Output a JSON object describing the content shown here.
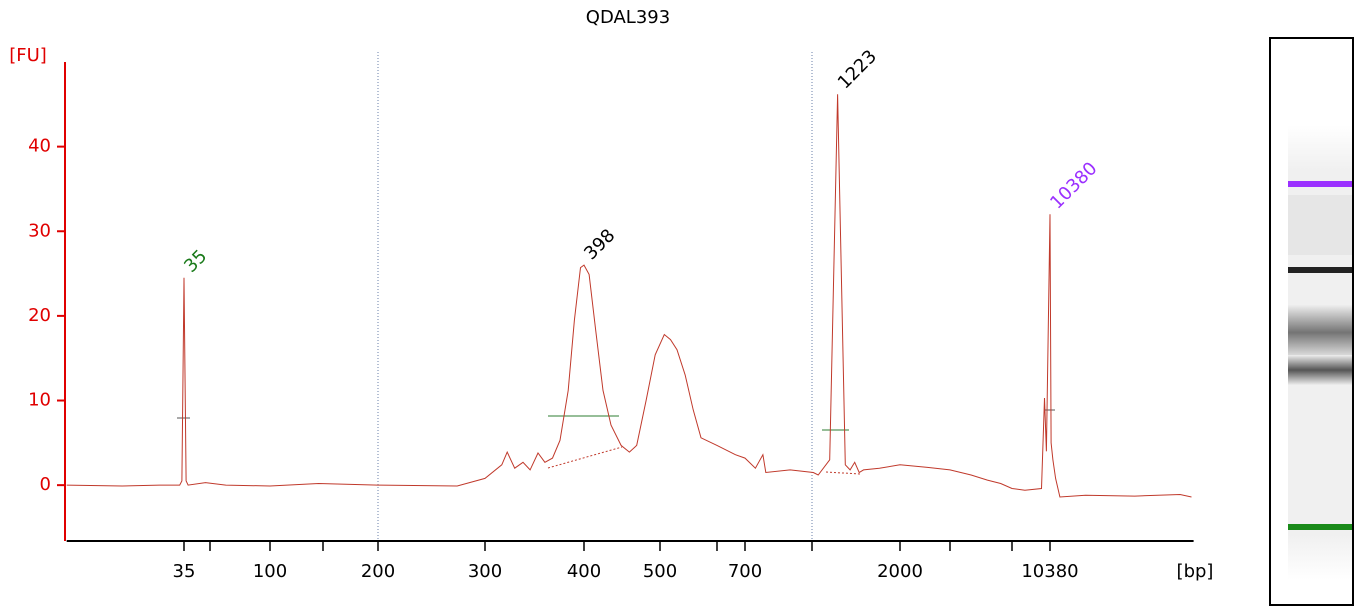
{
  "chart_data": {
    "type": "line",
    "title": "QDAL393",
    "y_label": "[FU]",
    "x_label": "[bp]",
    "color": "#c0392b",
    "axis_color": "#e00000",
    "ylim": [
      -6.6,
      50
    ],
    "yticks": [
      0,
      10,
      20,
      30,
      40
    ],
    "xlim": [
      7,
      46000
    ],
    "xticks": [
      35,
      {
        "value": 50,
        "label": null
      },
      100,
      {
        "value": 150,
        "label": null
      },
      200,
      300,
      400,
      500,
      {
        "value": 600,
        "label": null
      },
      700,
      {
        "value": 1000,
        "label": null
      },
      2000,
      {
        "value": 3000,
        "label": null
      },
      {
        "value": 7000,
        "label": null
      },
      10380
    ],
    "reference_lines": [
      200,
      1000
    ],
    "x": [
      7,
      15,
      25,
      33,
      34,
      35,
      36,
      37,
      47,
      60,
      100,
      145,
      200,
      270,
      300,
      315,
      320,
      327,
      335,
      342,
      350,
      357,
      365,
      373,
      382,
      389,
      396,
      400,
      406,
      414,
      423,
      433,
      446,
      457,
      467,
      480,
      493,
      507,
      517,
      528,
      542,
      556,
      570,
      600,
      664,
      700,
      740,
      770,
      782,
      890,
      1010,
      1050,
      1150,
      1223,
      1300,
      1350,
      1400,
      1450,
      1500,
      1700,
      2000,
      2500,
      3000,
      4000,
      5000,
      6000,
      7000,
      8000,
      9500,
      9800,
      10000,
      10380,
      10500,
      10700,
      11000,
      11500,
      15000,
      25000,
      40000,
      45000
    ],
    "values": [
      0,
      -0.1,
      0,
      0,
      0.5,
      24.5,
      0.5,
      0,
      0.3,
      0,
      -0.1,
      0.2,
      0,
      -0.1,
      0.8,
      2.4,
      3.9,
      2,
      2.7,
      1.8,
      3.8,
      2.7,
      3.2,
      5.3,
      11.2,
      19.5,
      25.7,
      26,
      24.9,
      18.3,
      11.2,
      7.1,
      4.7,
      3.9,
      4.7,
      10,
      15.4,
      17.8,
      17.2,
      16,
      13,
      8.9,
      5.6,
      4.7,
      3.6,
      3.2,
      2,
      3.6,
      1.5,
      1.8,
      1.5,
      1.2,
      3,
      46.2,
      2.4,
      1.8,
      2.7,
      1.5,
      1.8,
      2,
      2.4,
      2.1,
      1.8,
      1.2,
      0.6,
      0.2,
      -0.4,
      -0.6,
      -0.4,
      10.3,
      4,
      32,
      5,
      3,
      0.8,
      -1.4,
      -1.2,
      -1.3,
      -1.1,
      -1.4
    ],
    "peak_labels": [
      {
        "text": "35",
        "x": 35,
        "y": 24.5,
        "color": "#1a7a1a"
      },
      {
        "text": "398",
        "x": 400,
        "y": 26,
        "color": "#000000"
      },
      {
        "text": "1223",
        "x": 1223,
        "y": 46.2,
        "color": "#000000"
      },
      {
        "text": "10380",
        "x": 10380,
        "y": 32,
        "color": "#9b30ff"
      }
    ]
  }
}
